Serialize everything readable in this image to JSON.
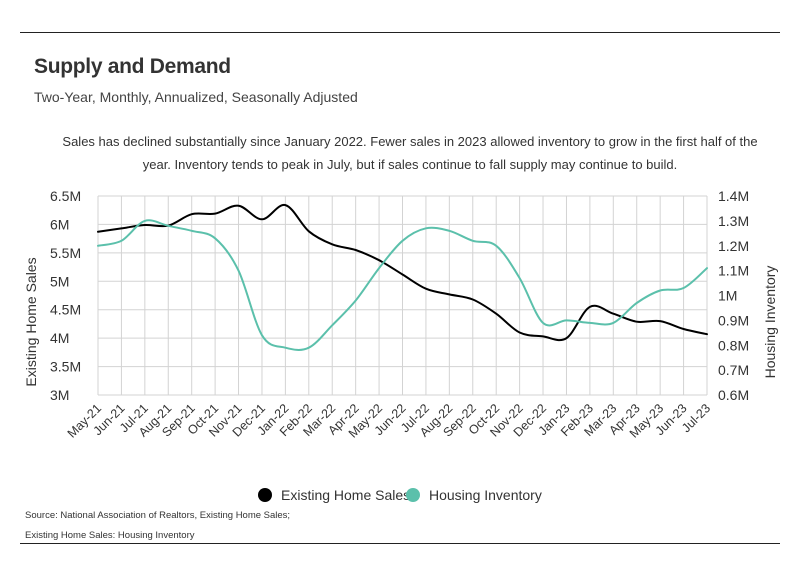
{
  "header": {
    "title": "Supply and Demand",
    "subtitle": "Two-Year, Monthly, Annualized, Seasonally Adjusted",
    "description": "Sales has declined substantially since January 2022. Fewer sales in 2023 allowed inventory to grow in the first half of the year. Inventory tends to peak in July, but if sales continue to fall supply may continue to build."
  },
  "footer": {
    "source_line_1": "Source:  National Association of Realtors, Existing Home Sales;",
    "source_line_2": "Existing Home Sales: Housing Inventory"
  },
  "colors": {
    "sales": "#000000",
    "inventory": "#5bc0ab",
    "grid": "#d3d3d3"
  },
  "chart_data": {
    "type": "line",
    "categories": [
      "May-21",
      "Jun-21",
      "Jul-21",
      "Aug-21",
      "Sep-21",
      "Oct-21",
      "Nov-21",
      "Dec-21",
      "Jan-22",
      "Feb-22",
      "Mar-22",
      "Apr-22",
      "May-22",
      "Jun-22",
      "Jul-22",
      "Aug-22",
      "Sep-22",
      "Oct-22",
      "Nov-22",
      "Dec-22",
      "Jan-23",
      "Feb-23",
      "Mar-23",
      "Apr-23",
      "May-23",
      "Jun-23",
      "Jul-23"
    ],
    "series": [
      {
        "name": "Existing Home Sales",
        "axis": "left",
        "values": [
          5.87,
          5.93,
          5.99,
          5.98,
          6.18,
          6.19,
          6.33,
          6.09,
          6.34,
          5.88,
          5.65,
          5.55,
          5.37,
          5.12,
          4.87,
          4.77,
          4.68,
          4.43,
          4.1,
          4.03,
          4.0,
          4.55,
          4.43,
          4.29,
          4.3,
          4.16,
          4.07
        ]
      },
      {
        "name": "Housing Inventory",
        "axis": "right",
        "values": [
          1.2,
          1.22,
          1.3,
          1.28,
          1.26,
          1.23,
          1.1,
          0.84,
          0.79,
          0.79,
          0.88,
          0.98,
          1.11,
          1.22,
          1.27,
          1.26,
          1.22,
          1.2,
          1.07,
          0.89,
          0.9,
          0.89,
          0.89,
          0.97,
          1.02,
          1.03,
          1.11
        ]
      }
    ],
    "left_axis": {
      "label": "Existing Home Sales",
      "ylim": [
        3.0,
        6.5
      ],
      "ticks": [
        3.0,
        3.5,
        4.0,
        4.5,
        5.0,
        5.5,
        6.0,
        6.5
      ],
      "tick_labels": [
        "3M",
        "3.5M",
        "4M",
        "4.5M",
        "5M",
        "5.5M",
        "6M",
        "6.5M"
      ]
    },
    "right_axis": {
      "label": "Housing Inventory",
      "ylim": [
        0.6,
        1.4
      ],
      "ticks": [
        0.6,
        0.7,
        0.8,
        0.9,
        1.0,
        1.1,
        1.2,
        1.3,
        1.4
      ],
      "tick_labels": [
        "0.6M",
        "0.7M",
        "0.8M",
        "0.9M",
        "1M",
        "1.1M",
        "1.2M",
        "1.3M",
        "1.4M"
      ]
    },
    "grid": true,
    "legend": {
      "placement": "bottom",
      "items": [
        "Existing Home Sales",
        "Housing Inventory"
      ]
    }
  }
}
